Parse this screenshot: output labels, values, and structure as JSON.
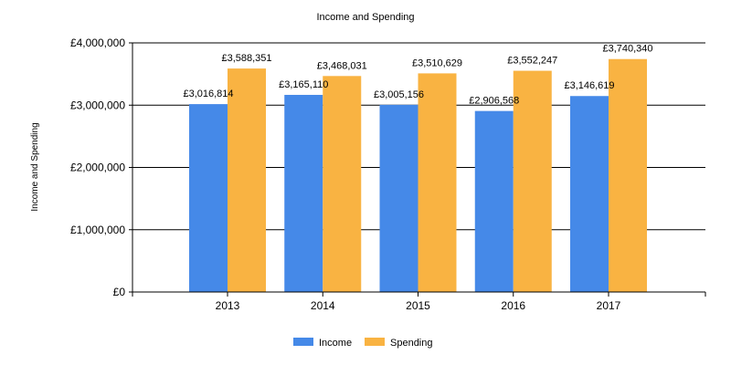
{
  "chart_data": {
    "type": "bar",
    "title": "Income and Spending",
    "xlabel": "",
    "ylabel": "Income and Spending",
    "categories": [
      "2013",
      "2014",
      "2015",
      "2016",
      "2017"
    ],
    "series": [
      {
        "name": "Income",
        "color": "#4589E8",
        "values": [
          3016814,
          3165110,
          3005156,
          2906568,
          3146619
        ],
        "labels": [
          "£3,016,814",
          "£3,165,110",
          "£3,005,156",
          "£2,906,568",
          "£3,146,619"
        ]
      },
      {
        "name": "Spending",
        "color": "#F9B342",
        "values": [
          3588351,
          3468031,
          3510629,
          3552247,
          3740340
        ],
        "labels": [
          "£3,588,351",
          "£3,468,031",
          "£3,510,629",
          "£3,552,247",
          "£3,740,340"
        ]
      }
    ],
    "ylim": [
      0,
      4000000
    ],
    "yticks": [
      {
        "value": 0,
        "label": "£0"
      },
      {
        "value": 1000000,
        "label": "£1,000,000"
      },
      {
        "value": 2000000,
        "label": "£2,000,000"
      },
      {
        "value": 3000000,
        "label": "£3,000,000"
      },
      {
        "value": 4000000,
        "label": "£4,000,000"
      }
    ],
    "grid": true,
    "legend_position": "bottom-center"
  }
}
